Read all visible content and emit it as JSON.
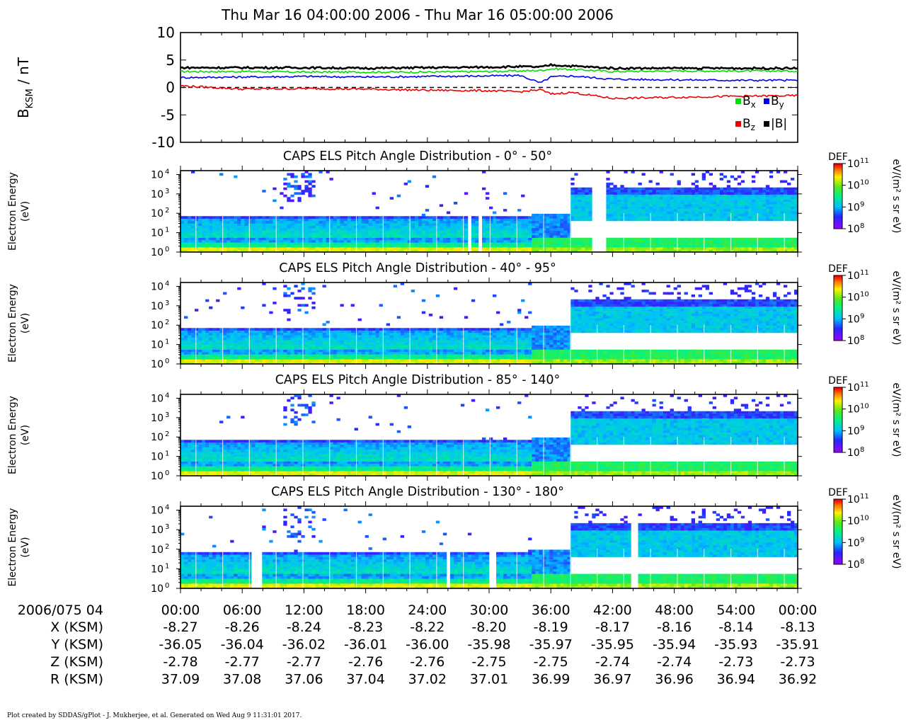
{
  "title": "Thu Mar 16 04:00:00 2006 - Thu Mar 16 05:00:00 2006",
  "footer": "Plot created by SDDAS/gPlot - J. Mukherjee, et al.  Generated on Wed Aug 9 11:31:01 2017.",
  "colors": {
    "bx": "#00dd00",
    "by": "#0000ee",
    "bz": "#ee0000",
    "bmag": "#000000"
  },
  "time_ticks": [
    "00:00",
    "06:00",
    "12:00",
    "18:00",
    "24:00",
    "30:00",
    "36:00",
    "42:00",
    "48:00",
    "54:00",
    "00:00"
  ],
  "chart_data": [
    {
      "type": "line",
      "title": "",
      "ylabel_main": "B",
      "ylabel_sub": "KSM",
      "ylabel_unit": " / nT",
      "ylim": [
        -10,
        10
      ],
      "yticks": [
        "10",
        "5",
        "0",
        "-5",
        "-10"
      ],
      "x_minutes": [
        0,
        6,
        12,
        18,
        24,
        30,
        33,
        35,
        36,
        38,
        42,
        48,
        54,
        60
      ],
      "legend": [
        {
          "key": "bx",
          "main": "B",
          "sub": "x"
        },
        {
          "key": "by",
          "main": "B",
          "sub": "y"
        },
        {
          "key": "bz",
          "main": "B",
          "sub": "z"
        },
        {
          "key": "bmag",
          "main": "|B|",
          "sub": ""
        }
      ],
      "series": [
        {
          "key": "bx",
          "values": [
            2.9,
            2.9,
            2.8,
            2.8,
            2.8,
            2.9,
            3.0,
            3.1,
            3.4,
            3.3,
            2.9,
            3.0,
            3.0,
            3.0
          ]
        },
        {
          "key": "by",
          "values": [
            1.8,
            1.9,
            2.0,
            1.9,
            2.0,
            2.1,
            2.2,
            0.8,
            1.9,
            2.1,
            1.5,
            1.4,
            1.3,
            1.3
          ]
        },
        {
          "key": "bz",
          "values": [
            0.3,
            -0.3,
            -0.2,
            -0.3,
            -0.5,
            -0.6,
            -0.8,
            -0.4,
            -1.2,
            -0.9,
            -2.0,
            -1.8,
            -1.6,
            -1.5
          ]
        },
        {
          "key": "bmag",
          "values": [
            3.6,
            3.6,
            3.6,
            3.5,
            3.6,
            3.7,
            3.8,
            3.7,
            4.1,
            3.9,
            3.5,
            3.5,
            3.5,
            3.5
          ]
        }
      ]
    },
    {
      "type": "heatmap",
      "title": "CAPS ELS Pitch Angle Distribution - 0° - 50°",
      "ylabel": "Electron Energy",
      "yunit": "(eV)",
      "yscale": "log",
      "ylim": [
        1,
        10000
      ],
      "yticks": [
        "10",
        "10",
        "10",
        "10",
        "10"
      ],
      "ytick_exp": [
        "4",
        "3",
        "2",
        "1",
        "0"
      ],
      "gaps_minutes": [
        [
          28.0,
          28.3
        ],
        [
          29.0,
          29.2
        ],
        [
          40.0,
          41.3
        ]
      ],
      "colorbar": {
        "label": "DEF",
        "unit": "eV/(m² s sr eV)",
        "ticks": [
          "10",
          "10",
          "10",
          "10"
        ],
        "tick_exp": [
          "11",
          "10",
          "9",
          "8"
        ]
      }
    },
    {
      "type": "heatmap",
      "title": "CAPS ELS Pitch Angle Distribution - 40° - 95°",
      "ylabel": "Electron Energy",
      "yunit": "(eV)",
      "yscale": "log",
      "ylim": [
        1,
        10000
      ],
      "yticks": [
        "10",
        "10",
        "10",
        "10",
        "10"
      ],
      "ytick_exp": [
        "4",
        "3",
        "2",
        "1",
        "0"
      ],
      "gaps_minutes": [],
      "colorbar": {
        "label": "DEF",
        "unit": "eV/(m² s sr eV)",
        "ticks": [
          "10",
          "10",
          "10",
          "10"
        ],
        "tick_exp": [
          "11",
          "10",
          "9",
          "8"
        ]
      }
    },
    {
      "type": "heatmap",
      "title": "CAPS ELS Pitch Angle Distribution - 85° - 140°",
      "ylabel": "Electron Energy",
      "yunit": "(eV)",
      "yscale": "log",
      "ylim": [
        1,
        10000
      ],
      "yticks": [
        "10",
        "10",
        "10",
        "10",
        "10"
      ],
      "ytick_exp": [
        "4",
        "3",
        "2",
        "1",
        "0"
      ],
      "gaps_minutes": [],
      "colorbar": {
        "label": "DEF",
        "unit": "eV/(m² s sr eV)",
        "ticks": [
          "10",
          "10",
          "10",
          "10"
        ],
        "tick_exp": [
          "11",
          "10",
          "9",
          "8"
        ]
      }
    },
    {
      "type": "heatmap",
      "title": "CAPS ELS Pitch Angle Distribution - 130° - 180°",
      "ylabel": "Electron Energy",
      "yunit": "(eV)",
      "yscale": "log",
      "ylim": [
        1,
        10000
      ],
      "yticks": [
        "10",
        "10",
        "10",
        "10",
        "10"
      ],
      "ytick_exp": [
        "4",
        "3",
        "2",
        "1",
        "0"
      ],
      "gaps_minutes": [
        [
          7.0,
          7.8
        ],
        [
          26.0,
          26.3
        ],
        [
          30.0,
          30.8
        ],
        [
          43.8,
          44.5
        ]
      ],
      "colorbar": {
        "label": "DEF",
        "unit": "eV/(m² s sr eV)",
        "ticks": [
          "10",
          "10",
          "10",
          "10"
        ],
        "tick_exp": [
          "11",
          "10",
          "9",
          "8"
        ]
      }
    }
  ],
  "ephemeris": {
    "date_label": "2006/075 04",
    "rows": [
      {
        "label": "X (KSM)",
        "values": [
          "-8.27",
          "-8.26",
          "-8.24",
          "-8.23",
          "-8.22",
          "-8.20",
          "-8.19",
          "-8.17",
          "-8.16",
          "-8.14",
          "-8.13"
        ]
      },
      {
        "label": "Y (KSM)",
        "values": [
          "-36.05",
          "-36.04",
          "-36.02",
          "-36.01",
          "-36.00",
          "-35.98",
          "-35.97",
          "-35.95",
          "-35.94",
          "-35.93",
          "-35.91"
        ]
      },
      {
        "label": "Z (KSM)",
        "values": [
          "-2.78",
          "-2.77",
          "-2.77",
          "-2.76",
          "-2.76",
          "-2.75",
          "-2.75",
          "-2.74",
          "-2.74",
          "-2.73",
          "-2.73"
        ]
      },
      {
        "label": "R (KSM)",
        "values": [
          "37.09",
          "37.08",
          "37.06",
          "37.04",
          "37.02",
          "37.01",
          "36.99",
          "36.97",
          "36.96",
          "36.94",
          "36.92"
        ]
      }
    ]
  }
}
